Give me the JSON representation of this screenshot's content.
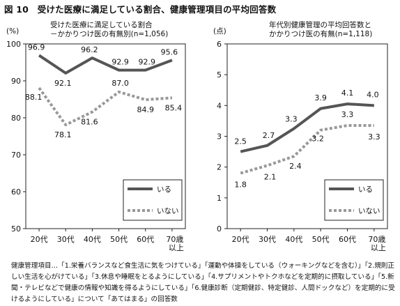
{
  "figure": {
    "title": "図 10　受けた医療に満足している割合、健康管理項目の平均回答数"
  },
  "caption": {
    "text": "健康管理項目…「1.栄養バランスなど食生活に気をつけている」「運動や体操をしている（ウォーキングなどを含む）」「2.規則正しい生活を心がけている」「3.休息や睡眠をとるようにしている」「4.サプリメントやトクホなどを定期的に摂取している」「5.新聞・テレビなどで健康の情報や知識を得るようにしている」「6.健康診断（定期健診、特定健診、人間ドックなど）を定期的に受けるようにしている」について「あてはまる」の回答数"
  },
  "chart_data": [
    {
      "type": "line",
      "title": "受けた医療に満足している割合",
      "subtitle": "－かかりつけ医の有無別(n=1,056)",
      "ylabel": "(%)",
      "xlabel": "",
      "ylim": [
        50,
        100
      ],
      "yticks": [
        50,
        60,
        70,
        80,
        90,
        100
      ],
      "grid": false,
      "legend": "bottom-right",
      "categories": [
        "20代",
        "30代",
        "40代",
        "50代",
        "60代",
        "70歳以上"
      ],
      "series": [
        {
          "name": "いる",
          "style": "solid",
          "color": "#555555",
          "values": [
            96.9,
            92.1,
            96.2,
            92.9,
            92.9,
            95.6
          ],
          "labels": [
            "96.9",
            "92.1",
            "96.2",
            "92.9",
            "92.9",
            "95.6"
          ]
        },
        {
          "name": "いない",
          "style": "dotted",
          "color": "#999999",
          "values": [
            88.1,
            78.1,
            81.6,
            87.0,
            84.9,
            85.4
          ],
          "labels": [
            "88.1",
            "78.1",
            "81.6",
            "87.0",
            "84.9",
            "85.4"
          ]
        }
      ]
    },
    {
      "type": "line",
      "title": "年代別健康管理の平均回答数と",
      "subtitle": "かかりつけ医の有無(n=1,118)",
      "ylabel": "(点)",
      "xlabel": "",
      "ylim": [
        0,
        6
      ],
      "yticks": [
        0,
        1,
        2,
        3,
        4,
        5,
        6
      ],
      "grid": false,
      "legend": "bottom-right",
      "categories": [
        "20代",
        "30代",
        "40代",
        "50代",
        "60代",
        "70歳以上"
      ],
      "series": [
        {
          "name": "いる",
          "style": "solid",
          "color": "#555555",
          "values": [
            2.5,
            2.7,
            3.25,
            3.9,
            4.05,
            4.0
          ],
          "labels": [
            "2.5",
            "2.7",
            "3.3",
            "3.9",
            "4.1",
            "4.0"
          ]
        },
        {
          "name": "いない",
          "style": "dotted",
          "color": "#999999",
          "values": [
            1.8,
            2.05,
            2.35,
            3.2,
            3.35,
            3.35
          ],
          "labels": [
            "1.8",
            "2.1",
            "2.4",
            "3.2",
            "3.3",
            "3.3"
          ]
        }
      ]
    }
  ]
}
